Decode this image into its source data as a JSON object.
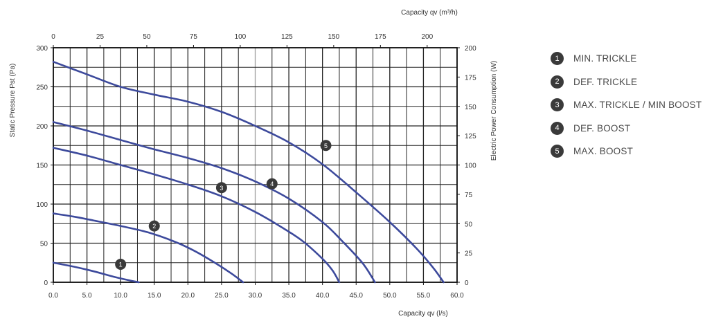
{
  "chart_data": {
    "type": "line",
    "title": "",
    "x_label_bottom": "Capacity qv (l/s)",
    "x_label_top": "Capacity qv (m³/h)",
    "y_label_left": "Static Pressure Pst (Pa)",
    "y_label_right": "Electric Power Consumption (W)",
    "xlim": [
      0,
      60
    ],
    "ylim": [
      0,
      300
    ],
    "x_ticks": [
      "0.0",
      "5.0",
      "10.0",
      "15.0",
      "20.0",
      "25.0",
      "30.0",
      "35.0",
      "40.0",
      "45.0",
      "50.0",
      "55.0",
      "60.0"
    ],
    "y_ticks": [
      "0",
      "50",
      "100",
      "150",
      "200",
      "250",
      "300"
    ],
    "x_top_lim": [
      0,
      216
    ],
    "x_top_ticks": [
      "0",
      "25",
      "50",
      "75",
      "100",
      "125",
      "150",
      "175",
      "200"
    ],
    "y_right_lim": [
      0,
      200
    ],
    "y_right_ticks": [
      "0",
      "25",
      "50",
      "75",
      "100",
      "125",
      "150",
      "175",
      "200"
    ],
    "grid": true,
    "line_color": "#3d4a9c",
    "marker_color": "#3a3a3a",
    "series": [
      {
        "name": "MIN. TRICKLE",
        "number": "1",
        "x": [
          0,
          3,
          6,
          9,
          11,
          12.7
        ],
        "y": [
          25,
          20,
          14,
          7,
          3,
          0
        ],
        "marker": {
          "x": 10,
          "y": 23
        }
      },
      {
        "name": "DEF. TRICKLE",
        "number": "2",
        "x": [
          0,
          3,
          6,
          10,
          14,
          18,
          21,
          24,
          26.5,
          28.2
        ],
        "y": [
          88,
          84,
          79,
          72,
          64,
          52,
          40,
          25,
          11,
          0
        ],
        "marker": {
          "x": 15,
          "y": 72
        }
      },
      {
        "name": "MAX. TRICKLE / MIN BOOST",
        "number": "3",
        "x": [
          0,
          5,
          10,
          15,
          20,
          25,
          30,
          34,
          37,
          40,
          41.5,
          42.5
        ],
        "y": [
          172,
          162,
          150,
          138,
          125,
          110,
          90,
          70,
          53,
          30,
          15,
          0
        ],
        "marker": {
          "x": 25,
          "y": 121
        }
      },
      {
        "name": "DEF. BOOST",
        "number": "4",
        "x": [
          0,
          5,
          10,
          15,
          20,
          25,
          30,
          35,
          40,
          43,
          46,
          47.8
        ],
        "y": [
          205,
          194,
          182,
          170,
          159,
          146,
          129,
          107,
          77,
          52,
          24,
          0
        ],
        "marker": {
          "x": 32.5,
          "y": 126
        }
      },
      {
        "name": "MAX. BOOST",
        "number": "5",
        "x": [
          0,
          5,
          10,
          15,
          20,
          25,
          30,
          35,
          40,
          45,
          50,
          54,
          56.5,
          58
        ],
        "y": [
          282,
          266,
          250,
          240,
          231,
          218,
          200,
          179,
          151,
          115,
          77,
          43,
          18,
          0
        ],
        "marker": {
          "x": 40.5,
          "y": 175
        }
      }
    ]
  }
}
